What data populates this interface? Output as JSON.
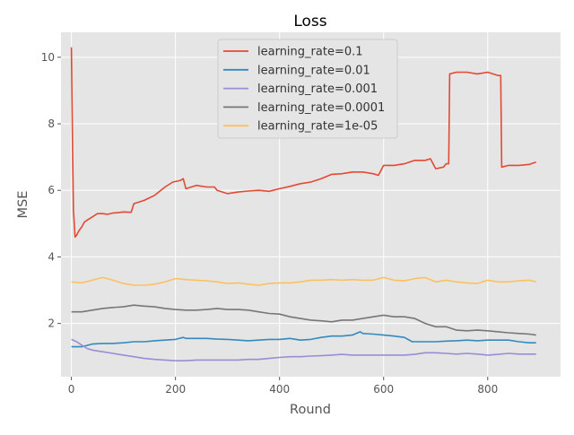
{
  "chart_data": {
    "type": "line",
    "title": "Loss",
    "xlabel": "Round",
    "ylabel": "MSE",
    "xlim": [
      -20,
      940
    ],
    "ylim": [
      0.4,
      10.75
    ],
    "xticks": [
      0,
      200,
      400,
      600,
      800
    ],
    "xtick_labels": [
      "0",
      "200",
      "400",
      "600",
      "800"
    ],
    "yticks": [
      2,
      4,
      6,
      8,
      10
    ],
    "ytick_labels": [
      "2",
      "4",
      "6",
      "8",
      "10"
    ],
    "grid": true,
    "legend_position": "top-center",
    "series": [
      {
        "name": "learning_rate=0.1",
        "color": "#e24a33",
        "points": [
          [
            0,
            10.3
          ],
          [
            2,
            7.5
          ],
          [
            4,
            5.4
          ],
          [
            7,
            4.6
          ],
          [
            10,
            4.65
          ],
          [
            15,
            4.8
          ],
          [
            20,
            4.9
          ],
          [
            25,
            5.05
          ],
          [
            30,
            5.1
          ],
          [
            40,
            5.2
          ],
          [
            50,
            5.3
          ],
          [
            60,
            5.3
          ],
          [
            70,
            5.28
          ],
          [
            80,
            5.32
          ],
          [
            90,
            5.33
          ],
          [
            100,
            5.35
          ],
          [
            115,
            5.34
          ],
          [
            120,
            5.6
          ],
          [
            140,
            5.7
          ],
          [
            160,
            5.85
          ],
          [
            180,
            6.1
          ],
          [
            195,
            6.25
          ],
          [
            210,
            6.3
          ],
          [
            215,
            6.35
          ],
          [
            220,
            6.05
          ],
          [
            240,
            6.15
          ],
          [
            260,
            6.1
          ],
          [
            275,
            6.1
          ],
          [
            280,
            6.0
          ],
          [
            300,
            5.9
          ],
          [
            320,
            5.95
          ],
          [
            340,
            5.98
          ],
          [
            360,
            6.0
          ],
          [
            380,
            5.97
          ],
          [
            400,
            6.05
          ],
          [
            420,
            6.12
          ],
          [
            440,
            6.2
          ],
          [
            460,
            6.25
          ],
          [
            480,
            6.35
          ],
          [
            500,
            6.48
          ],
          [
            520,
            6.5
          ],
          [
            540,
            6.55
          ],
          [
            560,
            6.55
          ],
          [
            580,
            6.5
          ],
          [
            590,
            6.45
          ],
          [
            600,
            6.75
          ],
          [
            620,
            6.75
          ],
          [
            640,
            6.8
          ],
          [
            660,
            6.9
          ],
          [
            680,
            6.9
          ],
          [
            690,
            6.95
          ],
          [
            700,
            6.65
          ],
          [
            715,
            6.7
          ],
          [
            720,
            6.8
          ],
          [
            725,
            6.8
          ],
          [
            727,
            9.5
          ],
          [
            740,
            9.55
          ],
          [
            760,
            9.55
          ],
          [
            780,
            9.5
          ],
          [
            800,
            9.55
          ],
          [
            820,
            9.45
          ],
          [
            825,
            9.45
          ],
          [
            827,
            6.7
          ],
          [
            840,
            6.75
          ],
          [
            860,
            6.75
          ],
          [
            880,
            6.78
          ],
          [
            893,
            6.85
          ]
        ]
      },
      {
        "name": "learning_rate=0.01",
        "color": "#348abd",
        "points": [
          [
            0,
            1.3
          ],
          [
            20,
            1.3
          ],
          [
            40,
            1.38
          ],
          [
            60,
            1.4
          ],
          [
            80,
            1.4
          ],
          [
            100,
            1.42
          ],
          [
            120,
            1.45
          ],
          [
            140,
            1.45
          ],
          [
            160,
            1.48
          ],
          [
            180,
            1.5
          ],
          [
            200,
            1.52
          ],
          [
            215,
            1.58
          ],
          [
            220,
            1.55
          ],
          [
            240,
            1.55
          ],
          [
            260,
            1.55
          ],
          [
            280,
            1.53
          ],
          [
            300,
            1.52
          ],
          [
            320,
            1.5
          ],
          [
            340,
            1.48
          ],
          [
            360,
            1.5
          ],
          [
            380,
            1.52
          ],
          [
            400,
            1.52
          ],
          [
            420,
            1.55
          ],
          [
            440,
            1.5
          ],
          [
            460,
            1.52
          ],
          [
            480,
            1.58
          ],
          [
            500,
            1.62
          ],
          [
            520,
            1.62
          ],
          [
            540,
            1.65
          ],
          [
            555,
            1.75
          ],
          [
            560,
            1.7
          ],
          [
            580,
            1.68
          ],
          [
            600,
            1.65
          ],
          [
            620,
            1.62
          ],
          [
            640,
            1.58
          ],
          [
            655,
            1.45
          ],
          [
            680,
            1.45
          ],
          [
            700,
            1.45
          ],
          [
            720,
            1.47
          ],
          [
            740,
            1.48
          ],
          [
            760,
            1.5
          ],
          [
            780,
            1.48
          ],
          [
            800,
            1.5
          ],
          [
            820,
            1.5
          ],
          [
            840,
            1.5
          ],
          [
            860,
            1.45
          ],
          [
            880,
            1.42
          ],
          [
            893,
            1.42
          ]
        ]
      },
      {
        "name": "learning_rate=0.001",
        "color": "#988ed5",
        "points": [
          [
            0,
            1.52
          ],
          [
            10,
            1.45
          ],
          [
            20,
            1.35
          ],
          [
            30,
            1.25
          ],
          [
            40,
            1.2
          ],
          [
            60,
            1.15
          ],
          [
            80,
            1.1
          ],
          [
            100,
            1.05
          ],
          [
            120,
            1.0
          ],
          [
            140,
            0.95
          ],
          [
            160,
            0.92
          ],
          [
            180,
            0.9
          ],
          [
            200,
            0.88
          ],
          [
            220,
            0.88
          ],
          [
            240,
            0.9
          ],
          [
            260,
            0.9
          ],
          [
            280,
            0.9
          ],
          [
            300,
            0.9
          ],
          [
            320,
            0.9
          ],
          [
            340,
            0.92
          ],
          [
            360,
            0.92
          ],
          [
            380,
            0.95
          ],
          [
            400,
            0.98
          ],
          [
            420,
            1.0
          ],
          [
            440,
            1.0
          ],
          [
            460,
            1.02
          ],
          [
            480,
            1.03
          ],
          [
            500,
            1.05
          ],
          [
            520,
            1.07
          ],
          [
            540,
            1.05
          ],
          [
            560,
            1.05
          ],
          [
            580,
            1.05
          ],
          [
            600,
            1.05
          ],
          [
            620,
            1.05
          ],
          [
            640,
            1.05
          ],
          [
            660,
            1.07
          ],
          [
            680,
            1.12
          ],
          [
            700,
            1.12
          ],
          [
            720,
            1.1
          ],
          [
            740,
            1.08
          ],
          [
            760,
            1.1
          ],
          [
            780,
            1.08
          ],
          [
            800,
            1.05
          ],
          [
            820,
            1.07
          ],
          [
            840,
            1.1
          ],
          [
            860,
            1.08
          ],
          [
            880,
            1.08
          ],
          [
            893,
            1.08
          ]
        ]
      },
      {
        "name": "learning_rate=0.0001",
        "color": "#777777",
        "points": [
          [
            0,
            2.35
          ],
          [
            20,
            2.35
          ],
          [
            40,
            2.4
          ],
          [
            60,
            2.45
          ],
          [
            80,
            2.48
          ],
          [
            100,
            2.5
          ],
          [
            120,
            2.55
          ],
          [
            140,
            2.52
          ],
          [
            160,
            2.5
          ],
          [
            180,
            2.45
          ],
          [
            200,
            2.42
          ],
          [
            220,
            2.4
          ],
          [
            240,
            2.4
          ],
          [
            260,
            2.42
          ],
          [
            280,
            2.45
          ],
          [
            300,
            2.42
          ],
          [
            320,
            2.42
          ],
          [
            340,
            2.4
          ],
          [
            360,
            2.35
          ],
          [
            380,
            2.3
          ],
          [
            400,
            2.28
          ],
          [
            420,
            2.2
          ],
          [
            440,
            2.15
          ],
          [
            460,
            2.1
          ],
          [
            480,
            2.08
          ],
          [
            500,
            2.05
          ],
          [
            520,
            2.1
          ],
          [
            540,
            2.1
          ],
          [
            560,
            2.15
          ],
          [
            580,
            2.2
          ],
          [
            600,
            2.25
          ],
          [
            620,
            2.2
          ],
          [
            640,
            2.2
          ],
          [
            660,
            2.15
          ],
          [
            680,
            2.0
          ],
          [
            700,
            1.9
          ],
          [
            720,
            1.9
          ],
          [
            740,
            1.8
          ],
          [
            760,
            1.78
          ],
          [
            780,
            1.8
          ],
          [
            800,
            1.78
          ],
          [
            820,
            1.75
          ],
          [
            840,
            1.72
          ],
          [
            860,
            1.7
          ],
          [
            880,
            1.68
          ],
          [
            893,
            1.65
          ]
        ]
      },
      {
        "name": "learning_rate=1e-05",
        "color": "#fbc15e",
        "points": [
          [
            0,
            3.25
          ],
          [
            20,
            3.22
          ],
          [
            40,
            3.3
          ],
          [
            60,
            3.38
          ],
          [
            80,
            3.3
          ],
          [
            100,
            3.2
          ],
          [
            120,
            3.15
          ],
          [
            140,
            3.15
          ],
          [
            160,
            3.18
          ],
          [
            180,
            3.25
          ],
          [
            200,
            3.35
          ],
          [
            220,
            3.32
          ],
          [
            240,
            3.3
          ],
          [
            260,
            3.28
          ],
          [
            280,
            3.25
          ],
          [
            300,
            3.2
          ],
          [
            320,
            3.22
          ],
          [
            340,
            3.18
          ],
          [
            360,
            3.15
          ],
          [
            380,
            3.2
          ],
          [
            400,
            3.22
          ],
          [
            420,
            3.22
          ],
          [
            440,
            3.25
          ],
          [
            460,
            3.3
          ],
          [
            480,
            3.3
          ],
          [
            500,
            3.32
          ],
          [
            520,
            3.3
          ],
          [
            540,
            3.32
          ],
          [
            560,
            3.3
          ],
          [
            580,
            3.3
          ],
          [
            600,
            3.38
          ],
          [
            620,
            3.3
          ],
          [
            640,
            3.28
          ],
          [
            660,
            3.35
          ],
          [
            680,
            3.38
          ],
          [
            700,
            3.25
          ],
          [
            720,
            3.3
          ],
          [
            740,
            3.25
          ],
          [
            760,
            3.22
          ],
          [
            780,
            3.2
          ],
          [
            800,
            3.3
          ],
          [
            820,
            3.25
          ],
          [
            840,
            3.25
          ],
          [
            860,
            3.28
          ],
          [
            880,
            3.3
          ],
          [
            893,
            3.25
          ]
        ]
      }
    ]
  }
}
